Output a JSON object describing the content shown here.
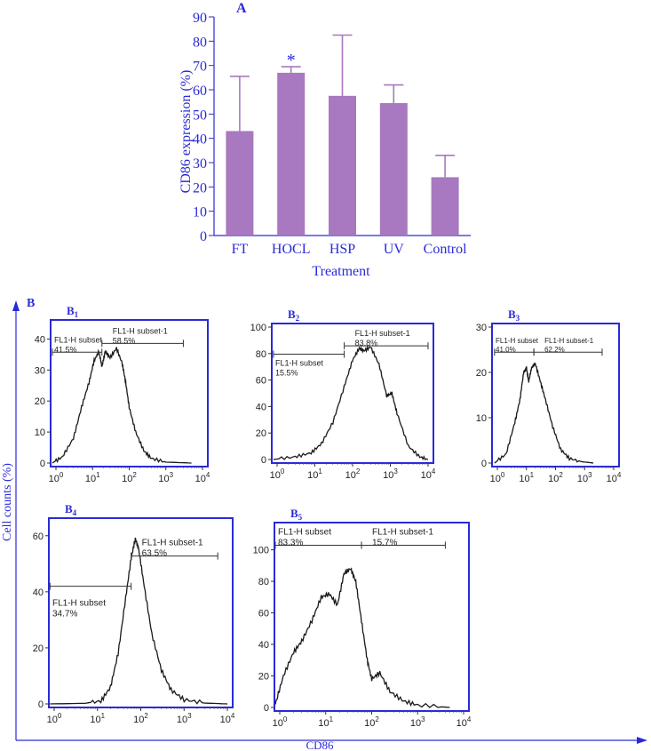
{
  "colors": {
    "axis_blue": "#2a2ad8",
    "bar_fill": "#a878c0",
    "curve": "#1a1a1a"
  },
  "chart_data": [
    {
      "panel": "A",
      "type": "bar",
      "title": "A",
      "categories": [
        "FT",
        "HOCL",
        "HSP",
        "UV",
        "Control"
      ],
      "values": [
        43,
        67,
        57.5,
        54.5,
        24
      ],
      "error_upper": [
        65.5,
        69.5,
        82.5,
        62,
        33
      ],
      "ylim": [
        0,
        90
      ],
      "yticks": [
        "0",
        "10",
        "20",
        "30",
        "40",
        "50",
        "60",
        "70",
        "80",
        "90"
      ],
      "xlabel": "Treatment",
      "ylabel": "CD86 expression (%)",
      "annotations": [
        {
          "category": "HOCL",
          "text": "*"
        }
      ]
    },
    {
      "panel": "B",
      "type": "line",
      "title": "B",
      "xlabel": "CD86",
      "ylabel": "Cell counts (%)",
      "xscale": "log",
      "xticks": [
        "10^0",
        "10^1",
        "10^2",
        "10^3",
        "10^4"
      ],
      "subplots": [
        {
          "label": "B",
          "sub": "1",
          "ylim": [
            0,
            45
          ],
          "yticks": [
            "0",
            "10",
            "20",
            "30",
            "40"
          ],
          "gates": [
            {
              "name": "FL1-H subset",
              "pct": "41.5%",
              "x_from": 0.8,
              "x_to": 18
            },
            {
              "name": "FL1-H subset-1",
              "pct": "58.5%",
              "x_from": 18,
              "x_to": 3000
            }
          ],
          "curve": [
            [
              0.8,
              0
            ],
            [
              1.5,
              2
            ],
            [
              3,
              8
            ],
            [
              5,
              18
            ],
            [
              8,
              26
            ],
            [
              11,
              33
            ],
            [
              15,
              36
            ],
            [
              18,
              31
            ],
            [
              22,
              36
            ],
            [
              30,
              34
            ],
            [
              45,
              37
            ],
            [
              65,
              32
            ],
            [
              80,
              26
            ],
            [
              100,
              18
            ],
            [
              150,
              10
            ],
            [
              250,
              4
            ],
            [
              400,
              1.5
            ],
            [
              1000,
              0.3
            ],
            [
              5000,
              0
            ]
          ]
        },
        {
          "label": "B",
          "sub": "2",
          "ylim": [
            0,
            100
          ],
          "yticks": [
            "0",
            "20",
            "40",
            "60",
            "80",
            "100"
          ],
          "gates": [
            {
              "name": "FL1-H subset",
              "pct": "15.5%",
              "x_from": 0.8,
              "x_to": 60
            },
            {
              "name": "FL1-H subset-1",
              "pct": "83.8%",
              "x_from": 60,
              "x_to": 10000
            }
          ],
          "curve": [
            [
              0.8,
              0
            ],
            [
              3,
              2
            ],
            [
              8,
              5
            ],
            [
              15,
              12
            ],
            [
              30,
              28
            ],
            [
              60,
              55
            ],
            [
              100,
              75
            ],
            [
              150,
              84
            ],
            [
              200,
              82
            ],
            [
              300,
              85
            ],
            [
              500,
              72
            ],
            [
              800,
              48
            ],
            [
              1100,
              50
            ],
            [
              1500,
              35
            ],
            [
              3000,
              10
            ],
            [
              6000,
              2
            ],
            [
              10000,
              0
            ]
          ]
        },
        {
          "label": "B",
          "sub": "3",
          "ylim": [
            0,
            30
          ],
          "yticks": [
            "0",
            "10",
            "20",
            "30"
          ],
          "gates": [
            {
              "name": "FL1-H subset",
              "pct": "41.0%",
              "x_from": 0.8,
              "x_to": 18
            },
            {
              "name": "FL1-H subset-1",
              "pct": "62.2%",
              "x_from": 18,
              "x_to": 4000
            }
          ],
          "curve": [
            [
              0.8,
              0
            ],
            [
              2,
              2
            ],
            [
              4,
              9
            ],
            [
              6,
              14
            ],
            [
              8,
              20
            ],
            [
              10,
              21
            ],
            [
              12,
              18
            ],
            [
              15,
              21
            ],
            [
              20,
              22
            ],
            [
              30,
              18
            ],
            [
              45,
              14
            ],
            [
              80,
              8
            ],
            [
              150,
              3
            ],
            [
              300,
              1
            ],
            [
              800,
              0.3
            ],
            [
              2000,
              0
            ]
          ]
        },
        {
          "label": "B",
          "sub": "4",
          "ylim": [
            0,
            65
          ],
          "yticks": [
            "0",
            "20",
            "40",
            "60"
          ],
          "gates": [
            {
              "name": "FL1-H subset",
              "pct": "34.7%",
              "x_from": 0.8,
              "x_to": 60
            },
            {
              "name": "FL1-H subset-1",
              "pct": "63.5%",
              "x_from": 60,
              "x_to": 6000
            }
          ],
          "curve": [
            [
              0.8,
              0
            ],
            [
              5,
              0.2
            ],
            [
              12,
              1
            ],
            [
              20,
              6
            ],
            [
              30,
              18
            ],
            [
              45,
              38
            ],
            [
              60,
              52
            ],
            [
              75,
              59
            ],
            [
              90,
              55
            ],
            [
              120,
              42
            ],
            [
              180,
              25
            ],
            [
              300,
              12
            ],
            [
              500,
              5
            ],
            [
              1000,
              1.5
            ],
            [
              3000,
              0.3
            ],
            [
              10000,
              0
            ]
          ]
        },
        {
          "label": "B",
          "sub": "5",
          "ylim": [
            0,
            115
          ],
          "yticks": [
            "0",
            "20",
            "40",
            "60",
            "80",
            "100"
          ],
          "gates": [
            {
              "name": "FL1-H subset",
              "pct": "83.3%",
              "x_from": 0.8,
              "x_to": 60
            },
            {
              "name": "FL1-H subset-1",
              "pct": "15.7%",
              "x_from": 60,
              "x_to": 4000
            }
          ],
          "curve": [
            [
              0.8,
              2
            ],
            [
              1.2,
              20
            ],
            [
              2,
              35
            ],
            [
              3,
              42
            ],
            [
              5,
              55
            ],
            [
              8,
              70
            ],
            [
              12,
              72
            ],
            [
              18,
              65
            ],
            [
              25,
              85
            ],
            [
              35,
              88
            ],
            [
              45,
              80
            ],
            [
              60,
              55
            ],
            [
              80,
              30
            ],
            [
              100,
              18
            ],
            [
              150,
              22
            ],
            [
              250,
              10
            ],
            [
              500,
              4
            ],
            [
              1000,
              1.5
            ],
            [
              5000,
              0
            ]
          ]
        }
      ]
    }
  ]
}
